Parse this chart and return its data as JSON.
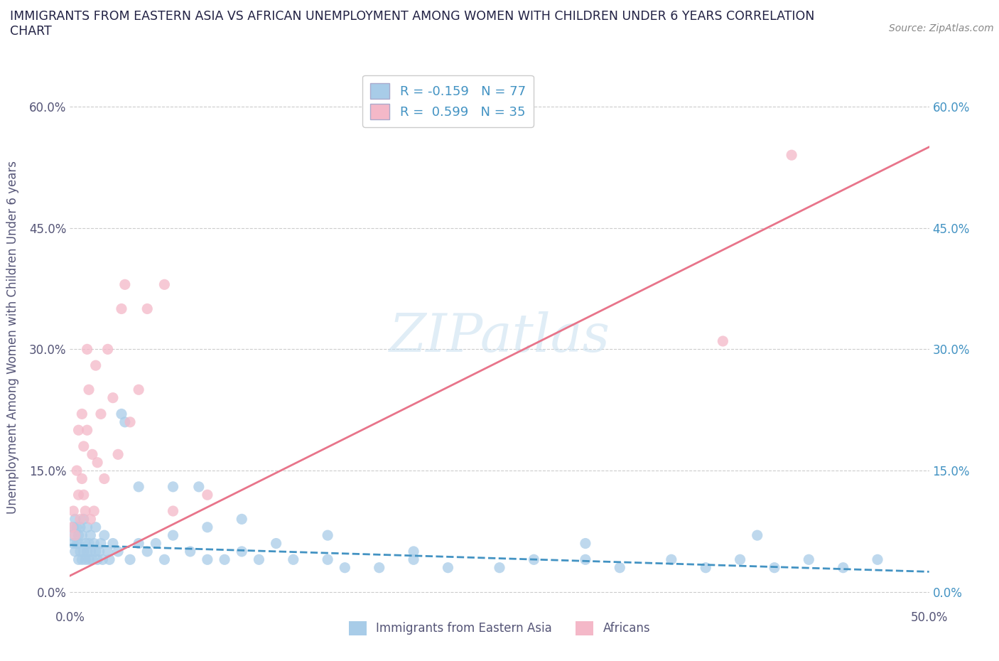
{
  "title_line1": "IMMIGRANTS FROM EASTERN ASIA VS AFRICAN UNEMPLOYMENT AMONG WOMEN WITH CHILDREN UNDER 6 YEARS CORRELATION",
  "title_line2": "CHART",
  "source": "Source: ZipAtlas.com",
  "ylabel": "Unemployment Among Women with Children Under 6 years",
  "xlim": [
    0.0,
    0.5
  ],
  "ylim": [
    -0.02,
    0.65
  ],
  "yticks": [
    0.0,
    0.15,
    0.3,
    0.45,
    0.6
  ],
  "ytick_labels_left": [
    "0.0%",
    "15.0%",
    "30.0%",
    "45.0%",
    "60.0%"
  ],
  "ytick_labels_right": [
    "0.0%",
    "15.0%",
    "30.0%",
    "45.0%",
    "60.0%"
  ],
  "xticks": [
    0.0,
    0.1,
    0.2,
    0.3,
    0.4,
    0.5
  ],
  "xtick_labels": [
    "0.0%",
    "",
    "",
    "",
    "",
    "50.0%"
  ],
  "watermark": "ZIPatlas",
  "blue_color": "#a8cce8",
  "pink_color": "#f4b8c8",
  "blue_line_color": "#4393c3",
  "pink_line_color": "#e8748a",
  "blue_R": -0.159,
  "blue_N": 77,
  "pink_R": 0.599,
  "pink_N": 35,
  "blue_scatter_x": [
    0.001,
    0.002,
    0.002,
    0.003,
    0.003,
    0.004,
    0.004,
    0.005,
    0.005,
    0.005,
    0.006,
    0.006,
    0.007,
    0.007,
    0.008,
    0.008,
    0.009,
    0.009,
    0.01,
    0.01,
    0.011,
    0.011,
    0.012,
    0.012,
    0.013,
    0.014,
    0.015,
    0.015,
    0.016,
    0.017,
    0.018,
    0.019,
    0.02,
    0.022,
    0.023,
    0.025,
    0.028,
    0.03,
    0.032,
    0.035,
    0.04,
    0.045,
    0.05,
    0.055,
    0.06,
    0.07,
    0.075,
    0.08,
    0.09,
    0.1,
    0.11,
    0.12,
    0.13,
    0.15,
    0.16,
    0.18,
    0.2,
    0.22,
    0.25,
    0.27,
    0.3,
    0.32,
    0.35,
    0.37,
    0.39,
    0.41,
    0.43,
    0.45,
    0.47,
    0.04,
    0.06,
    0.08,
    0.1,
    0.15,
    0.2,
    0.3,
    0.4
  ],
  "blue_scatter_y": [
    0.07,
    0.06,
    0.08,
    0.05,
    0.09,
    0.06,
    0.08,
    0.04,
    0.07,
    0.06,
    0.05,
    0.08,
    0.04,
    0.07,
    0.05,
    0.09,
    0.04,
    0.06,
    0.05,
    0.08,
    0.04,
    0.06,
    0.05,
    0.07,
    0.04,
    0.06,
    0.05,
    0.08,
    0.04,
    0.05,
    0.06,
    0.04,
    0.07,
    0.05,
    0.04,
    0.06,
    0.05,
    0.22,
    0.21,
    0.04,
    0.13,
    0.05,
    0.06,
    0.04,
    0.13,
    0.05,
    0.13,
    0.04,
    0.04,
    0.05,
    0.04,
    0.06,
    0.04,
    0.04,
    0.03,
    0.03,
    0.04,
    0.03,
    0.03,
    0.04,
    0.04,
    0.03,
    0.04,
    0.03,
    0.04,
    0.03,
    0.04,
    0.03,
    0.04,
    0.06,
    0.07,
    0.08,
    0.09,
    0.07,
    0.05,
    0.06,
    0.07
  ],
  "pink_scatter_x": [
    0.001,
    0.002,
    0.003,
    0.004,
    0.005,
    0.005,
    0.006,
    0.007,
    0.007,
    0.008,
    0.008,
    0.009,
    0.01,
    0.01,
    0.011,
    0.012,
    0.013,
    0.014,
    0.015,
    0.016,
    0.018,
    0.02,
    0.022,
    0.025,
    0.028,
    0.03,
    0.032,
    0.035,
    0.04,
    0.045,
    0.055,
    0.06,
    0.08,
    0.38,
    0.42
  ],
  "pink_scatter_y": [
    0.08,
    0.1,
    0.07,
    0.15,
    0.12,
    0.2,
    0.09,
    0.14,
    0.22,
    0.12,
    0.18,
    0.1,
    0.2,
    0.3,
    0.25,
    0.09,
    0.17,
    0.1,
    0.28,
    0.16,
    0.22,
    0.14,
    0.3,
    0.24,
    0.17,
    0.35,
    0.38,
    0.21,
    0.25,
    0.35,
    0.38,
    0.1,
    0.12,
    0.31,
    0.54
  ],
  "blue_trend_x": [
    0.0,
    0.5
  ],
  "blue_trend_y": [
    0.058,
    0.025
  ],
  "pink_trend_x": [
    0.0,
    0.5
  ],
  "pink_trend_y": [
    0.02,
    0.55
  ],
  "legend_labels": [
    "Immigrants from Eastern Asia",
    "Africans"
  ],
  "title_color": "#222244",
  "axis_label_color": "#555577",
  "tick_color_left": "#555577",
  "tick_color_right": "#4393c3",
  "grid_color": "#cccccc",
  "right_ytick_labels": [
    "0.0%",
    "15.0%",
    "30.0%",
    "45.0%",
    "60.0%"
  ]
}
